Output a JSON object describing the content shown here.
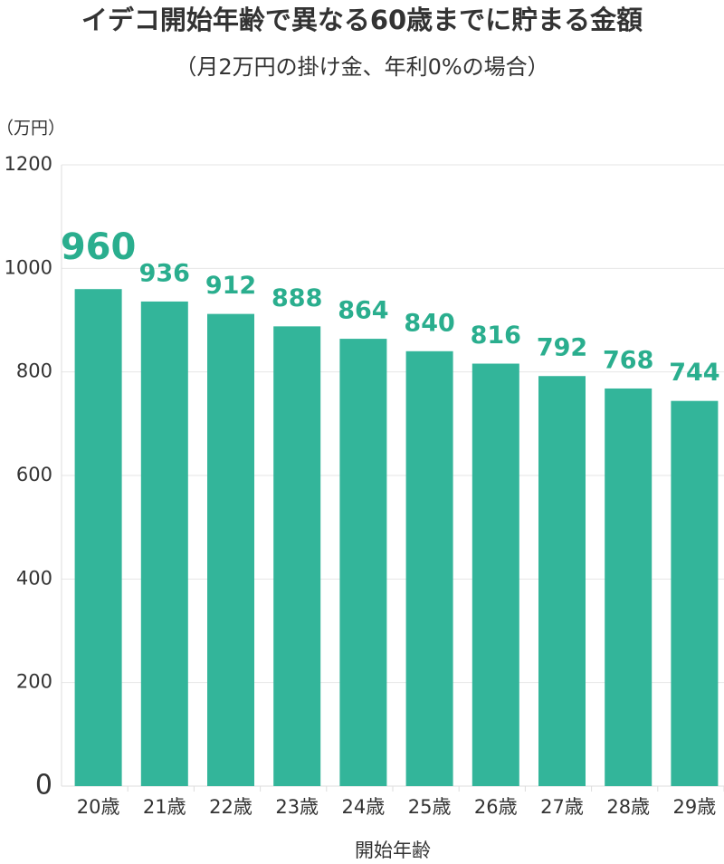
{
  "chart_data": {
    "type": "bar",
    "title": "イデコ開始年齢で異なる60歳までに貯まる金額",
    "subtitle": "（月2万円の掛け金、年利0%の場合）",
    "y_label": "（万円）",
    "x_label": "開始年齢",
    "categories": [
      "20歳",
      "21歳",
      "22歳",
      "23歳",
      "24歳",
      "25歳",
      "26歳",
      "27歳",
      "28歳",
      "29歳"
    ],
    "values": [
      960,
      936,
      912,
      888,
      864,
      840,
      816,
      792,
      768,
      744
    ],
    "color": "#33b59a",
    "value_label_color": "#2aae8e",
    "ylim": [
      0,
      1200
    ],
    "yticks": [
      0,
      200,
      400,
      600,
      800,
      1000,
      1200
    ],
    "grid": true
  }
}
